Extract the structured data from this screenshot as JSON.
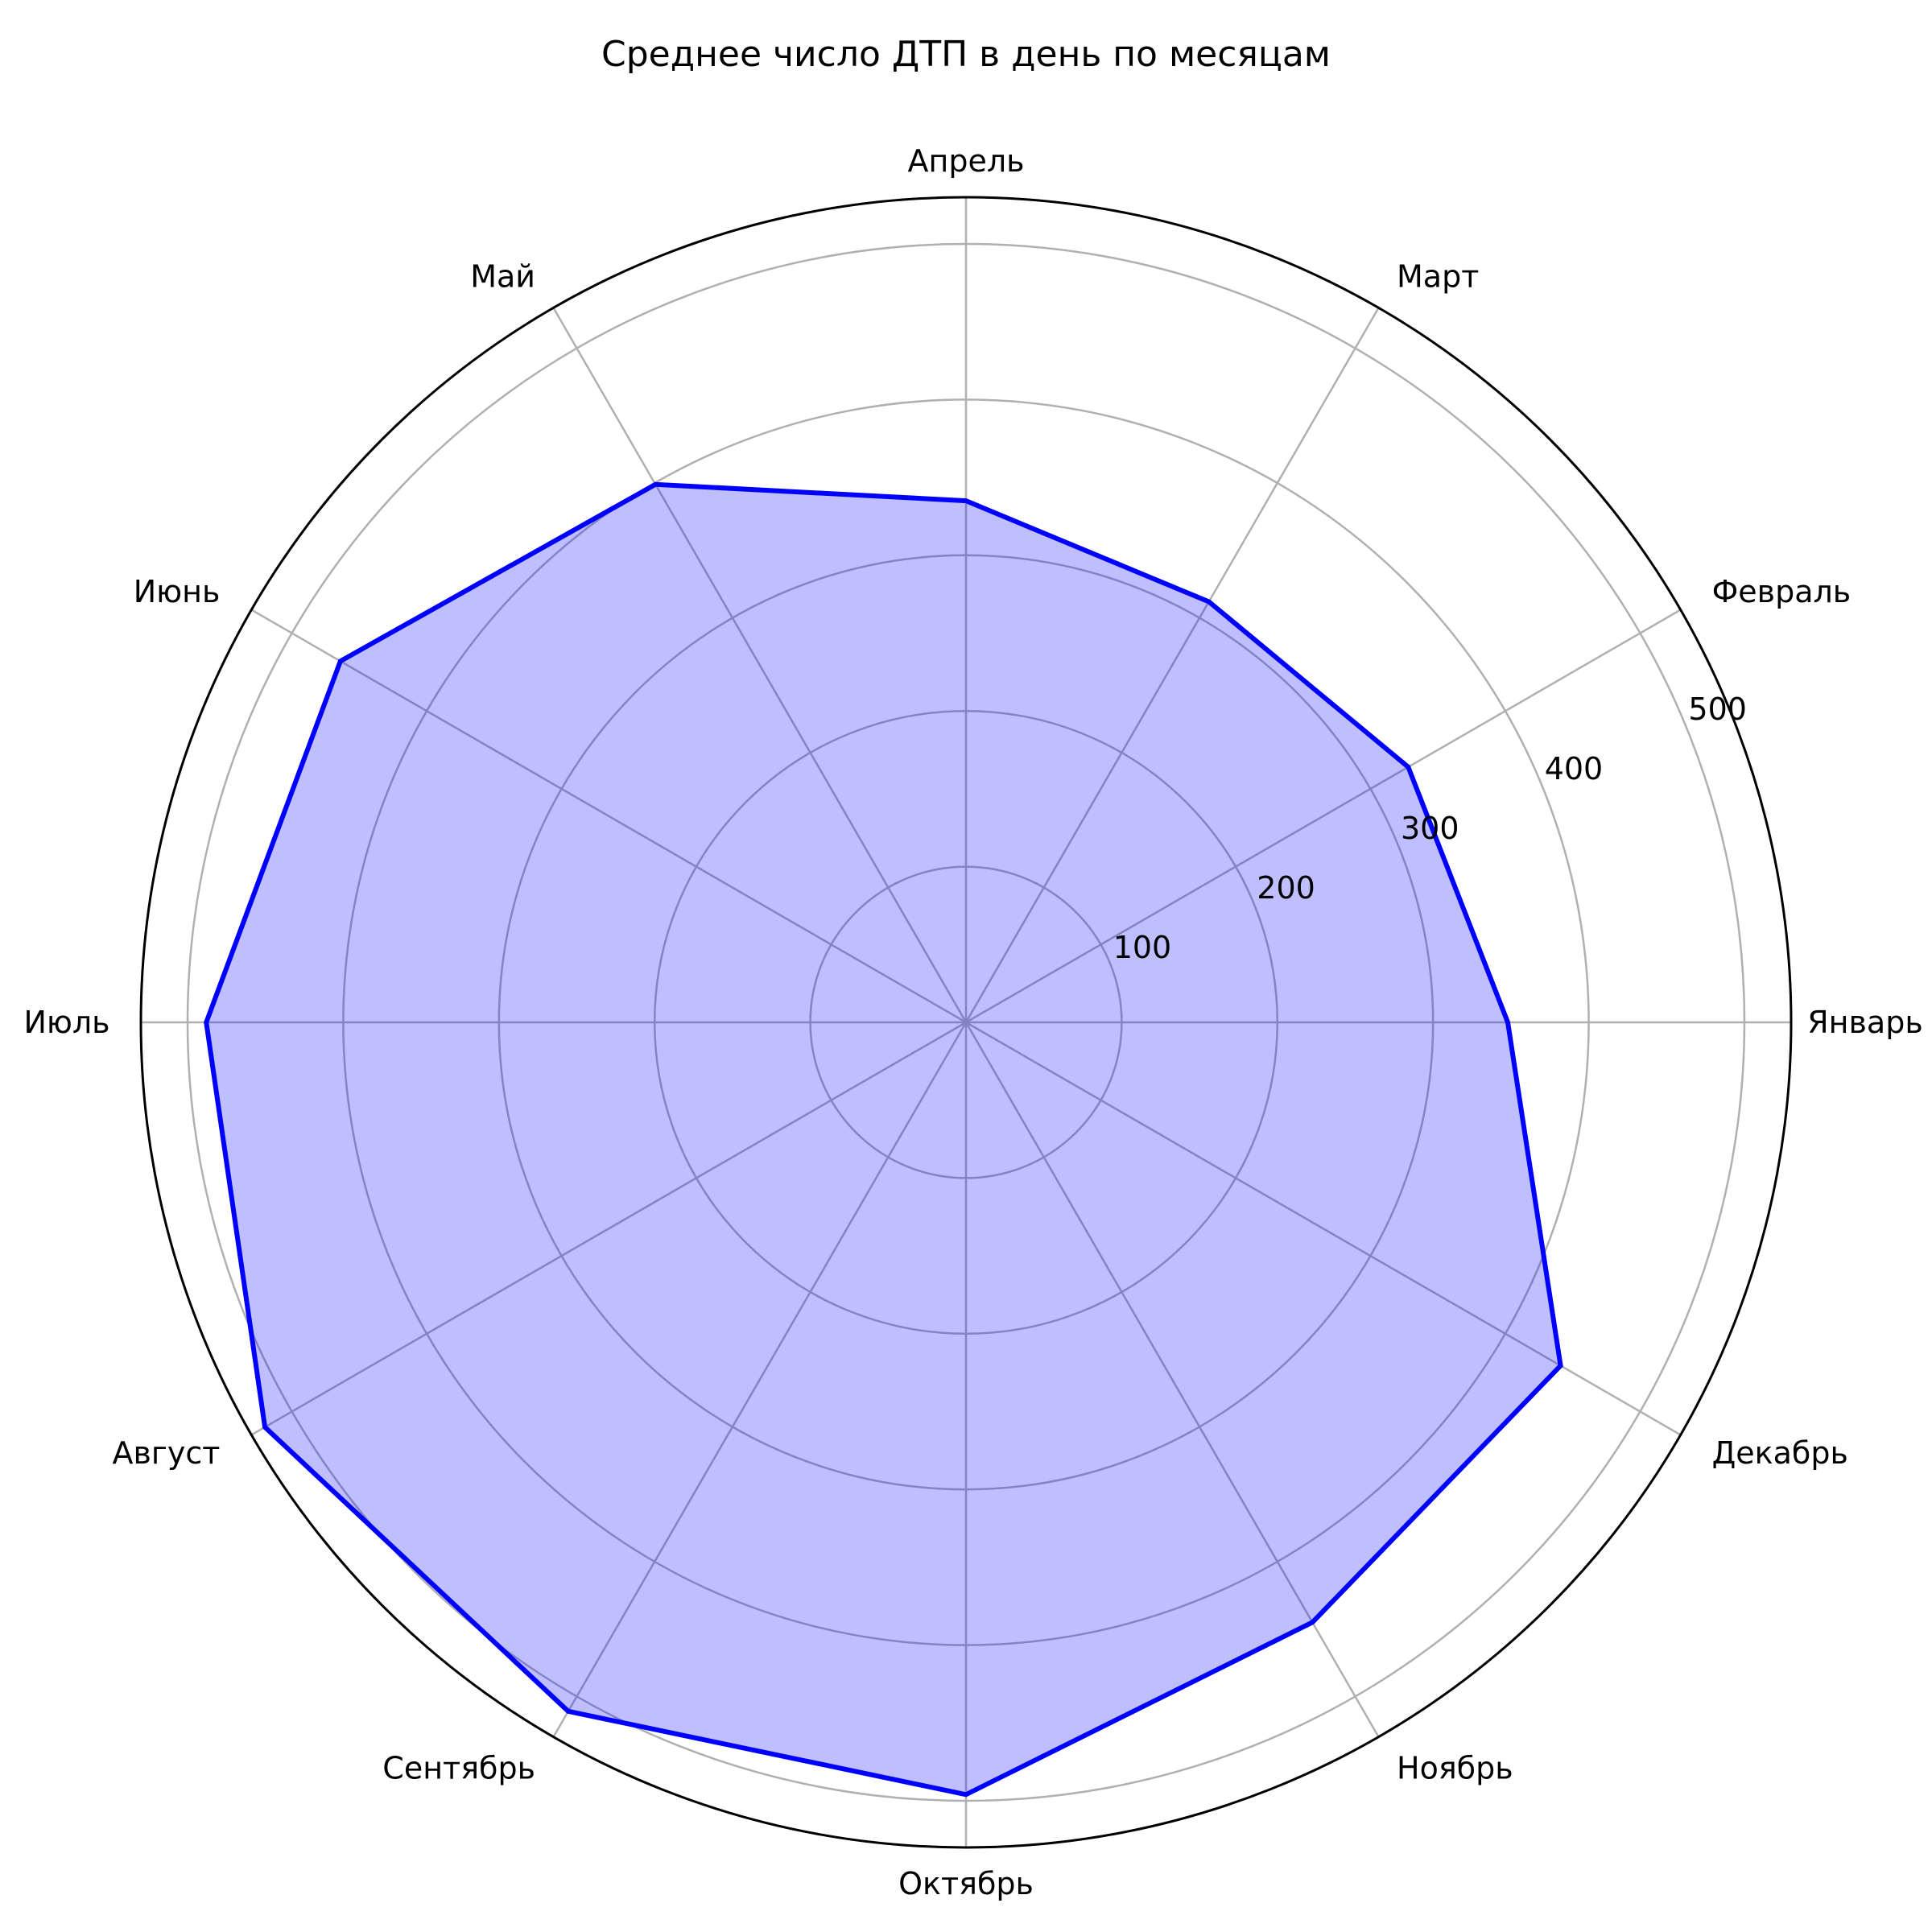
{
  "chart_data": {
    "type": "radar",
    "title": "Среднее число ДТП в день по месяцам",
    "categories": [
      "Январь",
      "Февраль",
      "Март",
      "Апрель",
      "Май",
      "Июнь",
      "Июль",
      "Август",
      "Сентябрь",
      "Октябрь",
      "Ноябрь",
      "Декабрь"
    ],
    "series": [
      {
        "values": [
          348,
          328,
          312,
          335,
          399,
          464,
          488,
          520,
          511,
          496,
          445,
          441
        ]
      }
    ],
    "rlim": [
      0,
      530
    ],
    "rticks": [
      100,
      200,
      300,
      400,
      500
    ],
    "rtick_labels": [
      "100",
      "200",
      "300",
      "400",
      "500"
    ],
    "rtick_label_angle_deg": 22.5,
    "start_angle_deg": 0,
    "direction": "counterclockwise",
    "grid": true,
    "legend": "none",
    "colors": {
      "line": "#0000ff",
      "fill": "#0000ff",
      "fill_opacity": 0.25,
      "grid": "#b0b0b0",
      "frame": "#000000"
    }
  }
}
